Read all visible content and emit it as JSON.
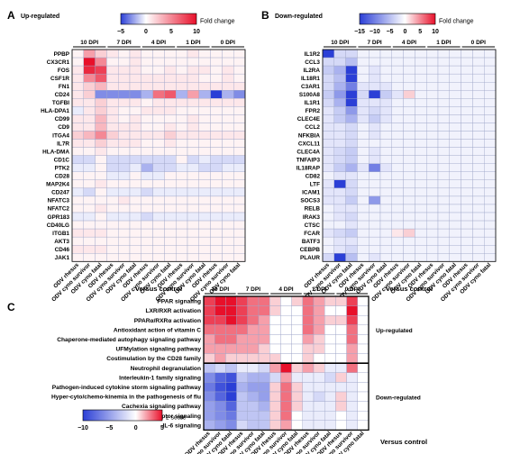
{
  "palette": {
    "low": "#2b3fd6",
    "mid": "#ffffff",
    "high": "#e8102a",
    "grid": "#9ea6c8",
    "ink": "#000000"
  },
  "columns": [
    "ODV rhesus",
    "ODV cyno survivor",
    "ODV cyno fatal",
    "ODV rhesus",
    "ODV cyno survivor",
    "ODV cyno fatal",
    "ODV rhesus",
    "ODV cyno survivor",
    "ODV cyno fatal",
    "ODV rhesus",
    "ODV cyno survivor",
    "ODV cyno fatal",
    "ODV rhesus",
    "ODV cyno survivor",
    "ODV cyno fatal"
  ],
  "dpi_groups": [
    "10 DPI",
    "7 DPI",
    "4 DPI",
    "1 DPI",
    "0 DPI"
  ],
  "panels": {
    "A": {
      "letter": "A",
      "label": "Up-regulated",
      "legend_label": "Fold change",
      "legend_ticks": [
        "−5",
        "0",
        "5",
        "10"
      ],
      "xlabel": "Versus control"
    },
    "B": {
      "letter": "B",
      "label": "Down-regulated",
      "legend_label": "Fold change",
      "legend_ticks": [
        "−15",
        "−10",
        "−5",
        "0",
        "5",
        "10"
      ],
      "xlabel": "Versus control"
    },
    "C": {
      "letter": "C",
      "label_up": "Up-regulated",
      "label_down": "Down-regulated",
      "legend_label": "z score",
      "legend_ticks": [
        "−10",
        "−5",
        "0",
        "5"
      ],
      "xlabel": "Versus control"
    }
  },
  "chart_data": [
    {
      "type": "heatmap",
      "panel": "A",
      "title": "Up-regulated",
      "legend": "Fold change",
      "color_range": [
        -5,
        10
      ],
      "columns_ref": "columns",
      "rows": [
        "PPBP",
        "CX3CR1",
        "FOS",
        "CSF1R",
        "FN1",
        "CD24",
        "TGFBI",
        "HLA-DPA1",
        "CD99",
        "CD9",
        "ITGA4",
        "IL7R",
        "HLA-DMA",
        "CD1C",
        "PTK2",
        "CD28",
        "MAP2K4",
        "CD247",
        "NFATC3",
        "NFATC2",
        "GPR183",
        "CD40LG",
        "ITGB1",
        "AKT3",
        "CD46",
        "JAK1"
      ],
      "values": [
        [
          0.5,
          4,
          2,
          1,
          0.5,
          1,
          0.5,
          0.5,
          0.5,
          0.5,
          1,
          0.5,
          0.5,
          0.5,
          0.5
        ],
        [
          0.5,
          10,
          5,
          0.5,
          0.5,
          1,
          0.5,
          0.5,
          0.5,
          0.5,
          0.5,
          0.5,
          0.5,
          0.5,
          0.5
        ],
        [
          1,
          9,
          8,
          1,
          1,
          1,
          0.5,
          0.5,
          1,
          0.5,
          1,
          1,
          0.5,
          1,
          0.5
        ],
        [
          1,
          5,
          7,
          1,
          1,
          1,
          1,
          1,
          1,
          1,
          1,
          0.5,
          0.5,
          1,
          0.5
        ],
        [
          1,
          2,
          3,
          1,
          1,
          1,
          1,
          1,
          1,
          1,
          1,
          1,
          1,
          1,
          1
        ],
        [
          1,
          2,
          -3,
          -3,
          -3,
          -3,
          -2,
          6,
          7,
          -2,
          4,
          -2,
          -5,
          -2,
          -3
        ],
        [
          1,
          1,
          2,
          1,
          1,
          1,
          0.5,
          1,
          1,
          1,
          1,
          1,
          1,
          1,
          1
        ],
        [
          -0.5,
          1,
          2,
          1,
          0.5,
          0.5,
          1,
          1,
          1,
          0.5,
          0.5,
          0.5,
          0.5,
          0.5,
          0.5
        ],
        [
          1,
          1,
          3,
          1,
          0.5,
          1,
          0.5,
          0.5,
          0.5,
          0.5,
          1,
          0.5,
          0.5,
          0.5,
          0.5
        ],
        [
          1,
          1,
          3,
          1,
          1,
          1,
          0.5,
          0.5,
          1,
          0.5,
          1,
          0.5,
          0.5,
          0.5,
          0.5
        ],
        [
          2,
          3,
          5,
          2,
          1,
          1,
          1,
          1,
          2,
          1,
          1,
          1,
          1,
          1,
          1
        ],
        [
          1,
          1,
          2,
          1,
          1,
          1,
          0.5,
          0.5,
          1,
          0.5,
          0.5,
          0.5,
          0.5,
          0.5,
          0.5
        ],
        [
          0.5,
          0.5,
          1,
          0.5,
          0.5,
          0.5,
          0.5,
          0.5,
          0.5,
          0.5,
          0.5,
          0.5,
          0.5,
          0.5,
          0.5
        ],
        [
          -1,
          -1,
          0.5,
          -1,
          -1,
          -1,
          -1,
          -1,
          -1,
          0.5,
          -1,
          -0.5,
          -1,
          -1,
          -1
        ],
        [
          -0.5,
          -0.5,
          0.5,
          -1,
          -1,
          -0.5,
          -2,
          -1,
          -1,
          -0.5,
          -0.5,
          -1,
          -1,
          -0.5,
          -0.5
        ],
        [
          0.5,
          0.5,
          0.5,
          -0.5,
          -0.5,
          0.5,
          -0.5,
          -0.5,
          0.5,
          0.5,
          0.5,
          0.5,
          0.5,
          0.5,
          0.5
        ],
        [
          0.5,
          0.5,
          1,
          0.5,
          0.5,
          0.5,
          0.5,
          0.5,
          0.5,
          0.5,
          0.5,
          0.5,
          0.5,
          0.5,
          0.5
        ],
        [
          -0.5,
          -1,
          0.5,
          -0.5,
          -0.5,
          -0.5,
          -1,
          -0.5,
          -0.5,
          -0.5,
          -0.5,
          -0.5,
          -0.5,
          -0.5,
          -0.5
        ],
        [
          0.5,
          0.5,
          0.5,
          0.5,
          1,
          0.5,
          0.5,
          0.5,
          0.5,
          0.5,
          0.5,
          0.5,
          0.5,
          0.5,
          0.5
        ],
        [
          0.5,
          0.5,
          1,
          0.5,
          0.5,
          0.5,
          0.5,
          0.5,
          0.5,
          0.5,
          0.5,
          0.5,
          0.5,
          0.5,
          0.5
        ],
        [
          -0.5,
          -0.5,
          0.5,
          -0.5,
          -0.5,
          -0.5,
          -1,
          -0.5,
          -0.5,
          -0.5,
          -0.5,
          -0.5,
          -0.5,
          -0.5,
          -0.5
        ],
        [
          0.5,
          0.5,
          0.5,
          0.5,
          0.5,
          0.5,
          0.5,
          0.5,
          0.5,
          0.5,
          0.5,
          0.5,
          0.5,
          0.5,
          0.5
        ],
        [
          1,
          1,
          1,
          0.5,
          0.5,
          0.5,
          0.5,
          0.5,
          0.5,
          0.5,
          0.5,
          0.5,
          0.5,
          0.5,
          0.5
        ],
        [
          0.5,
          0.5,
          0.5,
          0.5,
          0.5,
          0.5,
          0.5,
          0.5,
          0.5,
          0.5,
          0.5,
          0.5,
          0.5,
          0.5,
          0.5
        ],
        [
          1,
          1,
          1,
          0.5,
          0.5,
          0.5,
          0.5,
          0.5,
          0.5,
          0.5,
          0.5,
          0.5,
          0.5,
          0.5,
          0.5
        ],
        [
          0.5,
          0.5,
          0.5,
          0.5,
          0.5,
          0.5,
          0.5,
          0.5,
          0.5,
          0.5,
          0.5,
          0.5,
          0.5,
          0.5,
          0.5
        ]
      ]
    },
    {
      "type": "heatmap",
      "panel": "B",
      "title": "Down-regulated",
      "legend": "Fold change",
      "color_range": [
        -15,
        10
      ],
      "columns_ref": "columns",
      "rows": [
        "IL1R2",
        "CCL3",
        "IL2RA",
        "IL18R1",
        "C3AR1",
        "S100A8",
        "IL1R1",
        "FPR2",
        "CLEC4E",
        "CCL2",
        "NFKBIA",
        "CXCL11",
        "CLEC4A",
        "TNFAIP3",
        "IL18RAP",
        "CD82",
        "LTF",
        "ICAM1",
        "SOCS3",
        "RELB",
        "IRAK3",
        "CTSC",
        "FCAR",
        "BATF3",
        "CEBPB",
        "PLAUR"
      ],
      "values": [
        [
          -15,
          -3,
          -3,
          -1,
          -1,
          -1,
          -1,
          -1,
          -1,
          -1,
          -1,
          -1,
          -1,
          -1,
          -1
        ],
        [
          -3,
          -3,
          -5,
          -1,
          -1,
          -1,
          -1,
          -1,
          -1,
          -1,
          -1,
          -1,
          -1,
          -1,
          -1
        ],
        [
          -4,
          -6,
          -15,
          -1,
          -2,
          -1,
          -1,
          -1,
          -1,
          -1,
          -1,
          -1,
          -1,
          -1,
          -1
        ],
        [
          -3,
          -5,
          -15,
          -1,
          -2,
          -1,
          -1,
          -1,
          -1,
          -1,
          -1,
          -1,
          -1,
          -1,
          -1
        ],
        [
          -3,
          -6,
          -10,
          -2,
          -2,
          -2,
          -1,
          -1,
          -1,
          -1,
          -1,
          -1,
          -1,
          -1,
          -1
        ],
        [
          -4,
          -8,
          -15,
          -3,
          -15,
          -4,
          -2,
          2,
          -1,
          -1,
          -1,
          -1,
          -1,
          -1,
          -1
        ],
        [
          -3,
          -6,
          -15,
          -2,
          -2,
          -2,
          -1,
          -1,
          -1,
          -1,
          -1,
          -1,
          -1,
          -1,
          -1
        ],
        [
          -2,
          -4,
          -8,
          -2,
          -3,
          -2,
          -1,
          -1,
          -1,
          -1,
          -1,
          -1,
          -1,
          -1,
          -1
        ],
        [
          -2,
          -4,
          -6,
          -2,
          -4,
          -2,
          -1,
          -1,
          -1,
          -1,
          -1,
          -1,
          -1,
          -1,
          -1
        ],
        [
          -2,
          -2,
          -3,
          -1,
          -2,
          -1,
          -1,
          -1,
          -1,
          -1,
          -1,
          -1,
          -1,
          -1,
          -1
        ],
        [
          -2,
          -2,
          -3,
          -1,
          -2,
          -1,
          -1,
          -1,
          -1,
          -1,
          -1,
          -1,
          -1,
          -1,
          -1
        ],
        [
          -2,
          -2,
          -3,
          -1,
          -1,
          -1,
          -1,
          -1,
          -1,
          -1,
          -1,
          -1,
          -1,
          -1,
          -1
        ],
        [
          -2,
          -3,
          -4,
          -1,
          -2,
          -1,
          -1,
          -1,
          -1,
          -1,
          -1,
          -1,
          -1,
          -1,
          -1
        ],
        [
          -2,
          -3,
          -4,
          -1,
          -2,
          -1,
          -1,
          -1,
          -1,
          -1,
          -1,
          -1,
          -1,
          -1,
          -1
        ],
        [
          -2,
          -4,
          -6,
          -2,
          -10,
          -2,
          -1,
          -1,
          -1,
          -1,
          -1,
          -1,
          -1,
          -1,
          -1
        ],
        [
          -1,
          -2,
          -2,
          -1,
          -1,
          -1,
          -1,
          -1,
          -1,
          -1,
          -1,
          -1,
          -1,
          -1,
          -1
        ],
        [
          -2,
          -15,
          -3,
          -1,
          -1,
          -1,
          -1,
          -1,
          -1,
          -1,
          -1,
          -1,
          -1,
          -1,
          -1
        ],
        [
          -2,
          -2,
          -3,
          -1,
          -1,
          -1,
          -1,
          -1,
          -1,
          -1,
          -1,
          -1,
          -1,
          -1,
          -1
        ],
        [
          -2,
          -2,
          -4,
          -1,
          -8,
          -1,
          -1,
          -1,
          -1,
          -1,
          -1,
          -1,
          -1,
          -1,
          -1
        ],
        [
          -1,
          -2,
          -2,
          -1,
          -1,
          -1,
          -1,
          -1,
          -1,
          -1,
          -1,
          -1,
          -1,
          -1,
          -1
        ],
        [
          -1,
          -2,
          -3,
          -1,
          -1,
          -1,
          -1,
          -1,
          -1,
          -1,
          -1,
          -1,
          -1,
          -1,
          -1
        ],
        [
          -1,
          -1,
          -2,
          -1,
          -1,
          -1,
          -1,
          -1,
          -1,
          -1,
          -1,
          -1,
          -1,
          -1,
          -1
        ],
        [
          -2,
          -3,
          -4,
          -1,
          -1,
          -1,
          1,
          2,
          -1,
          -1,
          -1,
          -1,
          -1,
          -1,
          -1
        ],
        [
          -1,
          -2,
          -2,
          -1,
          -1,
          -1,
          -1,
          -1,
          -1,
          -1,
          -1,
          -1,
          -1,
          -1,
          -1
        ],
        [
          -1,
          -2,
          -3,
          -1,
          -1,
          -1,
          -1,
          -1,
          -1,
          -1,
          -1,
          -1,
          -1,
          -1,
          -1
        ],
        [
          -3,
          -15,
          -5,
          -1,
          -2,
          -1,
          -1,
          -1,
          -1,
          -1,
          -1,
          -1,
          -1,
          -1,
          -1
        ]
      ]
    },
    {
      "type": "heatmap",
      "panel": "C",
      "title": "",
      "legend": "z score",
      "color_range": [
        -10,
        5
      ],
      "columns_ref": "columns",
      "row_groups": [
        {
          "label": "Up-regulated",
          "rows": [
            "PPAR signaling",
            "LXR/RXR activation",
            "PPARα/RXRα activation",
            "Antioxidant action of vitamin C",
            "Chaperone-mediated autophagy signaling pathway",
            "UFMylation signaling pathway",
            "Costimulation by the CD28 family"
          ]
        },
        {
          "label": "Down-regulated",
          "rows": [
            "Neutrophil degranulation",
            "Interleukin-1 family signaling",
            "Pathogen-induced cytokine storm signaling pathway",
            "Hyper-cyto/chemo-kinemia in the pathogenesis of flu",
            "Cachexia signaling pathway",
            "Toll-like receptor signaling",
            "IL-6 signaling"
          ]
        }
      ],
      "rows": [
        "PPAR signaling",
        "LXR/RXR activation",
        "PPARα/RXRα activation",
        "Antioxidant action of vitamin C",
        "Chaperone-mediated autophagy signaling pathway",
        "UFMylation signaling pathway",
        "Costimulation by the CD28 family",
        "Neutrophil degranulation",
        "Interleukin-1 family signaling",
        "Pathogen-induced cytokine storm signaling pathway",
        "Hyper-cyto/chemo-kinemia in the pathogenesis of flu",
        "Cachexia signaling pathway",
        "Toll-like receptor signaling",
        "IL-6 signaling"
      ],
      "values": [
        [
          4,
          5,
          5,
          4,
          3,
          3,
          1,
          0,
          1,
          3,
          2,
          1,
          1,
          4,
          0
        ],
        [
          4,
          5,
          5,
          4,
          3,
          3,
          1,
          0,
          0,
          3,
          2,
          0,
          0,
          5,
          0
        ],
        [
          4,
          4,
          5,
          4,
          3,
          2,
          0,
          0,
          0,
          3,
          2,
          1,
          1,
          4,
          0
        ],
        [
          3,
          3,
          3,
          3,
          2,
          2,
          0,
          0,
          0,
          3,
          2,
          0,
          0,
          3,
          0
        ],
        [
          2,
          3,
          3,
          2,
          2,
          2,
          0,
          0,
          0,
          2,
          1,
          0,
          0,
          3,
          0
        ],
        [
          2,
          2,
          2,
          2,
          2,
          1,
          0,
          0,
          0,
          1,
          1,
          0,
          0,
          2,
          0
        ],
        [
          1,
          2,
          1,
          1,
          1,
          1,
          1,
          0,
          0,
          1,
          0,
          0,
          0,
          2,
          0
        ],
        [
          -3,
          -2,
          -3,
          -1,
          -1,
          -2,
          2,
          5,
          1,
          2,
          1,
          -1,
          -1,
          3,
          0
        ],
        [
          -6,
          -8,
          -9,
          -3,
          -4,
          -4,
          -2,
          2,
          -1,
          -1,
          -1,
          -2,
          1,
          -1,
          0
        ],
        [
          -7,
          -9,
          -10,
          -4,
          -5,
          -5,
          1,
          3,
          1,
          -1,
          -1,
          -1,
          -1,
          -1,
          0
        ],
        [
          -6,
          -8,
          -10,
          -3,
          -4,
          -5,
          1,
          3,
          1,
          -1,
          -2,
          -1,
          1,
          -1,
          0
        ],
        [
          -5,
          -6,
          -8,
          -3,
          -3,
          -4,
          1,
          3,
          1,
          -1,
          -1,
          -1,
          1,
          -1,
          0
        ],
        [
          -5,
          -6,
          -7,
          -3,
          -3,
          -3,
          1,
          3,
          0,
          -1,
          -1,
          -1,
          0,
          -1,
          0
        ],
        [
          -4,
          -5,
          -6,
          -2,
          -3,
          -3,
          1,
          2,
          0,
          -1,
          -1,
          -1,
          0,
          -1,
          0
        ]
      ]
    }
  ]
}
